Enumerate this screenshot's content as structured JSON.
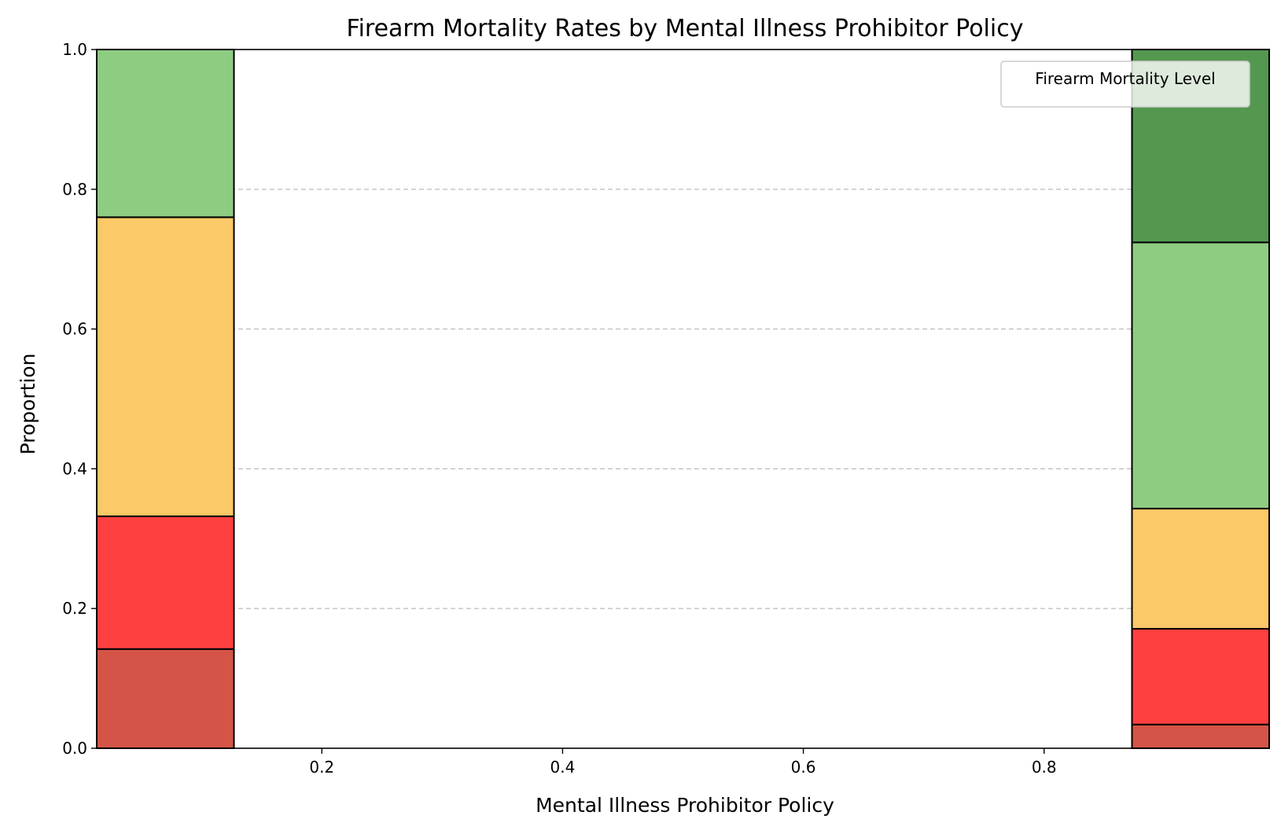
{
  "chart_data": {
    "type": "bar",
    "title": "Firearm Mortality Rates by Mental Illness Prohibitor Policy",
    "xlabel": "Mental Illness Prohibitor Policy",
    "ylabel": "Proportion",
    "xlim": [
      0.013,
      0.987
    ],
    "ylim": [
      0.0,
      1.0
    ],
    "xticks": [
      "0.2",
      "0.4",
      "0.6",
      "0.8"
    ],
    "yticks": [
      "0.0",
      "0.2",
      "0.4",
      "0.6",
      "0.8",
      "1.0"
    ],
    "grid": {
      "axis": "y",
      "style": "dashed",
      "color": "#c0c0c0"
    },
    "legend": {
      "title": "Firearm Mortality Level",
      "placement": "upper right"
    },
    "stack_colors": [
      "#d45547",
      "#ff4040",
      "#fbc967",
      "#8ecc82",
      "#549850"
    ],
    "bars": [
      {
        "x_start": 0.013,
        "x_end": 0.127,
        "segments": [
          0.142,
          0.19,
          0.428,
          0.24,
          0.0
        ]
      },
      {
        "x_start": 0.873,
        "x_end": 0.987,
        "segments": [
          0.034,
          0.137,
          0.172,
          0.381,
          0.276
        ]
      }
    ]
  }
}
